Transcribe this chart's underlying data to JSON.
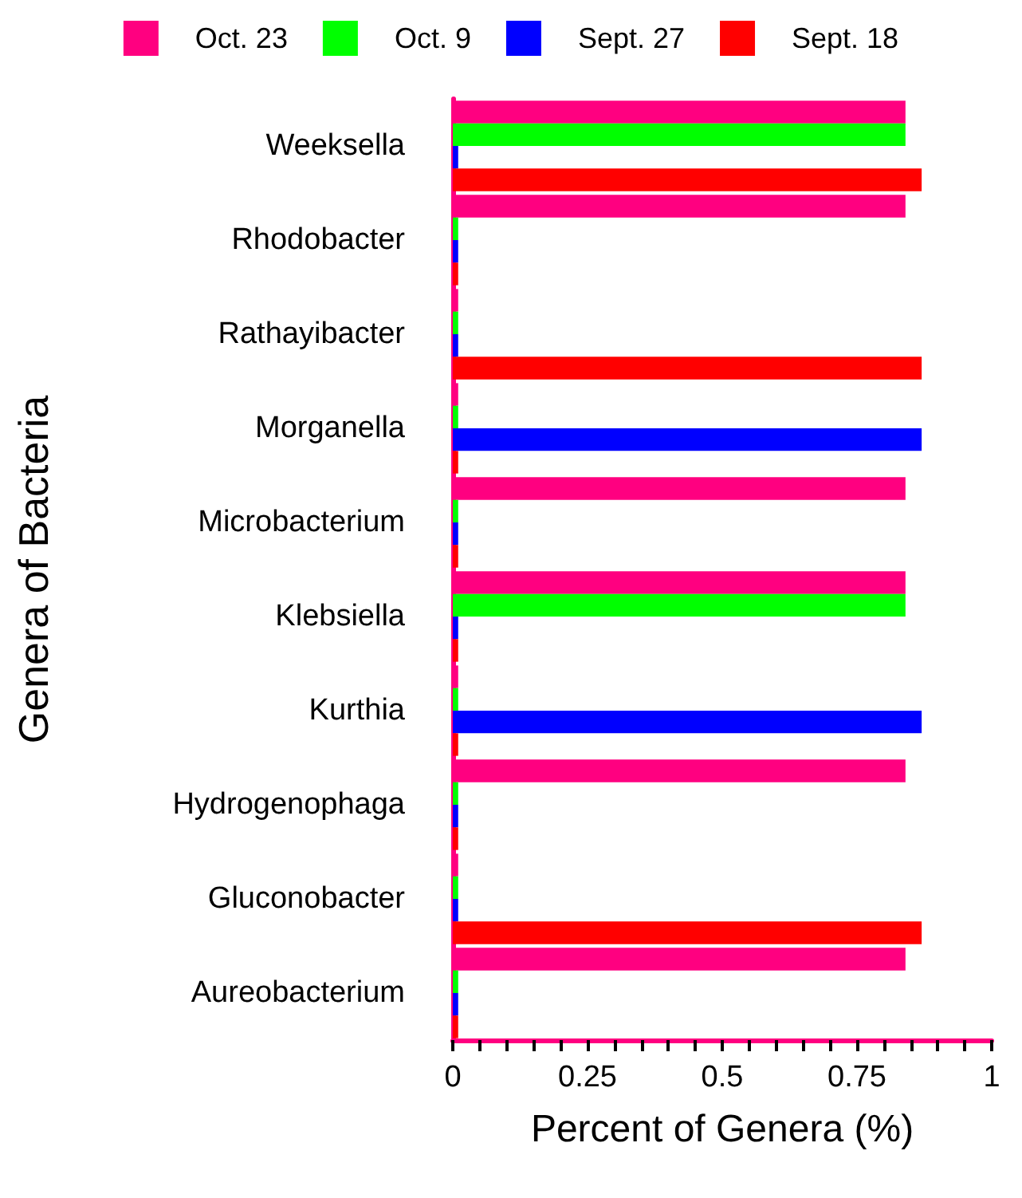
{
  "chart_data": {
    "type": "bar",
    "orientation": "horizontal",
    "xlabel": "Percent of Genera (%)",
    "ylabel": "Genera of Bacteria",
    "categories": [
      "Weeksella",
      "Rhodobacter",
      "Rathayibacter",
      "Morganella",
      "Microbacterium",
      "Klebsiella",
      "Kurthia",
      "Hydrogenophaga",
      "Gluconobacter",
      "Aureobacterium"
    ],
    "series": [
      {
        "name": "Oct. 23",
        "color": "#ff0080",
        "values": [
          0.84,
          0.84,
          0.01,
          0.01,
          0.84,
          0.84,
          0.01,
          0.84,
          0.01,
          0.84
        ]
      },
      {
        "name": "Oct. 9",
        "color": "#00ff00",
        "values": [
          0.84,
          0.01,
          0.01,
          0.01,
          0.01,
          0.84,
          0.01,
          0.01,
          0.01,
          0.01
        ]
      },
      {
        "name": "Sept. 27",
        "color": "#0000ff",
        "values": [
          0.01,
          0.01,
          0.01,
          0.87,
          0.01,
          0.01,
          0.87,
          0.01,
          0.01,
          0.01
        ]
      },
      {
        "name": "Sept. 18",
        "color": "#ff0000",
        "values": [
          0.87,
          0.01,
          0.87,
          0.01,
          0.01,
          0.01,
          0.01,
          0.01,
          0.87,
          0.01
        ]
      }
    ],
    "xlim": [
      0,
      1
    ],
    "xticks": [
      0,
      {
        "value": 0.05,
        "label": null
      },
      {
        "value": 0.1,
        "label": null
      },
      {
        "value": 0.15,
        "label": null
      },
      {
        "value": 0.2,
        "label": null
      },
      0.25,
      {
        "value": 0.3,
        "label": null
      },
      {
        "value": 0.35,
        "label": null
      },
      {
        "value": 0.4,
        "label": null
      },
      {
        "value": 0.45,
        "label": null
      },
      0.5,
      {
        "value": 0.55,
        "label": null
      },
      {
        "value": 0.6,
        "label": null
      },
      {
        "value": 0.65,
        "label": null
      },
      {
        "value": 0.7,
        "label": null
      },
      0.75,
      {
        "value": 0.8,
        "label": null
      },
      {
        "value": 0.85,
        "label": null
      },
      {
        "value": 0.9,
        "label": null
      },
      {
        "value": 0.95,
        "label": null
      },
      1
    ],
    "grid": false,
    "legend": "top"
  }
}
